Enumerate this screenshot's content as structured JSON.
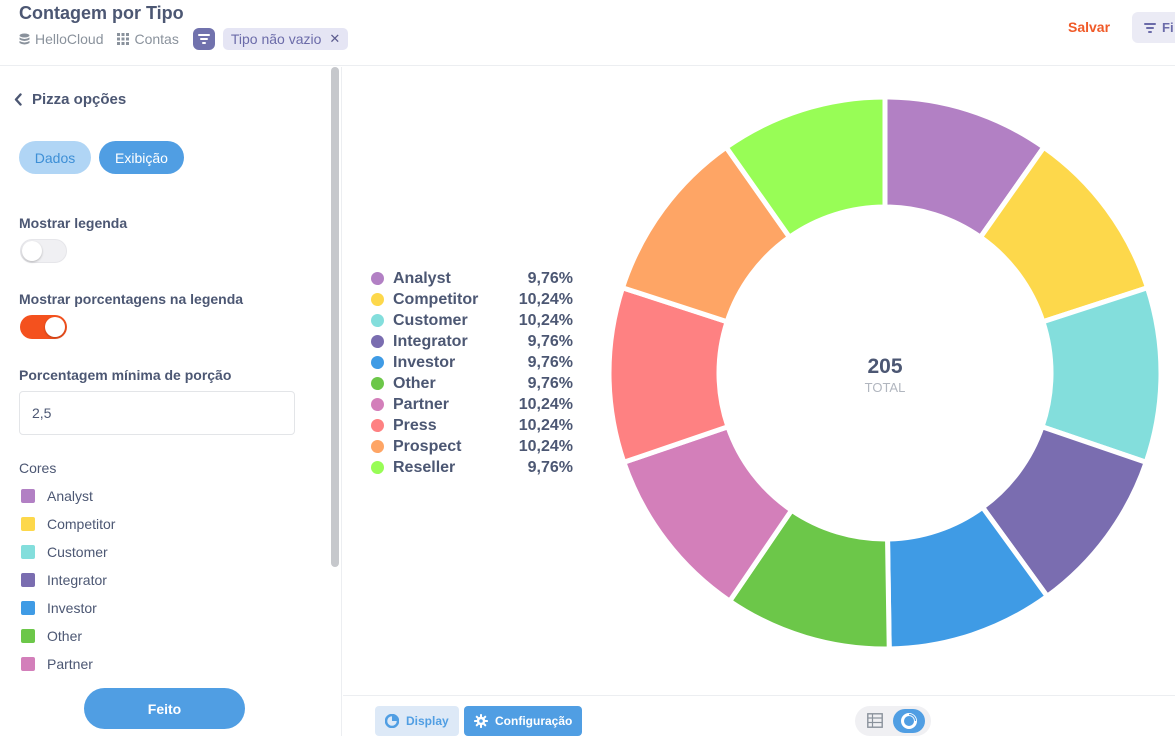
{
  "header": {
    "title": "Contagem por Tipo",
    "breadcrumbs": [
      {
        "label": "HelloCloud",
        "icon": "database-icon"
      },
      {
        "label": "Contas",
        "icon": "grid-icon"
      }
    ],
    "filter_pill": {
      "label": "Tipo não vazio",
      "remove_glyph": "✕"
    },
    "save_label": "Salvar",
    "filter_button_label": "Fi",
    "colors": {
      "save": "#f05a28",
      "filter": "#7172ad"
    }
  },
  "sidebar": {
    "back_label": "Pizza opções",
    "tabs": [
      {
        "label": "Dados",
        "active": false
      },
      {
        "label": "Exibição",
        "active": true
      }
    ],
    "show_legend": {
      "label": "Mostrar legenda",
      "enabled": false
    },
    "show_percent": {
      "label": "Mostrar porcentagens na legenda",
      "enabled": true
    },
    "min_slice": {
      "label": "Porcentagem mínima de porção",
      "value": "2,5"
    },
    "colors_title": "Cores",
    "color_items": [
      {
        "label": "Analyst",
        "color": "#b280c4"
      },
      {
        "label": "Competitor",
        "color": "#fdd84b"
      },
      {
        "label": "Customer",
        "color": "#83dedc"
      },
      {
        "label": "Integrator",
        "color": "#7a6db0"
      },
      {
        "label": "Investor",
        "color": "#3f9be5"
      },
      {
        "label": "Other",
        "color": "#6cc749"
      },
      {
        "label": "Partner",
        "color": "#d37fba"
      }
    ],
    "done_label": "Feito"
  },
  "chart_data": {
    "type": "pie",
    "donut": true,
    "total_value": "205",
    "total_label": "TOTAL",
    "legend_position": "left",
    "slices": [
      {
        "label": "Analyst",
        "percent_label": "9,76%",
        "value": 20,
        "color": "#b280c4"
      },
      {
        "label": "Competitor",
        "percent_label": "10,24%",
        "value": 21,
        "color": "#fdd84b"
      },
      {
        "label": "Customer",
        "percent_label": "10,24%",
        "value": 21,
        "color": "#83dedc"
      },
      {
        "label": "Integrator",
        "percent_label": "9,76%",
        "value": 20,
        "color": "#7a6db0"
      },
      {
        "label": "Investor",
        "percent_label": "9,76%",
        "value": 20,
        "color": "#3f9be5"
      },
      {
        "label": "Other",
        "percent_label": "9,76%",
        "value": 20,
        "color": "#6cc749"
      },
      {
        "label": "Partner",
        "percent_label": "10,24%",
        "value": 21,
        "color": "#d37fba"
      },
      {
        "label": "Press",
        "percent_label": "10,24%",
        "value": 21,
        "color": "#fe8182"
      },
      {
        "label": "Prospect",
        "percent_label": "10,24%",
        "value": 21,
        "color": "#fea565"
      },
      {
        "label": "Reseller",
        "percent_label": "9,76%",
        "value": 20,
        "color": "#98fd56"
      }
    ]
  },
  "footer": {
    "display_label": "Display",
    "config_label": "Configuração",
    "view_toggle": {
      "options": [
        "table-icon",
        "chart-icon"
      ],
      "active": "chart-icon"
    }
  }
}
